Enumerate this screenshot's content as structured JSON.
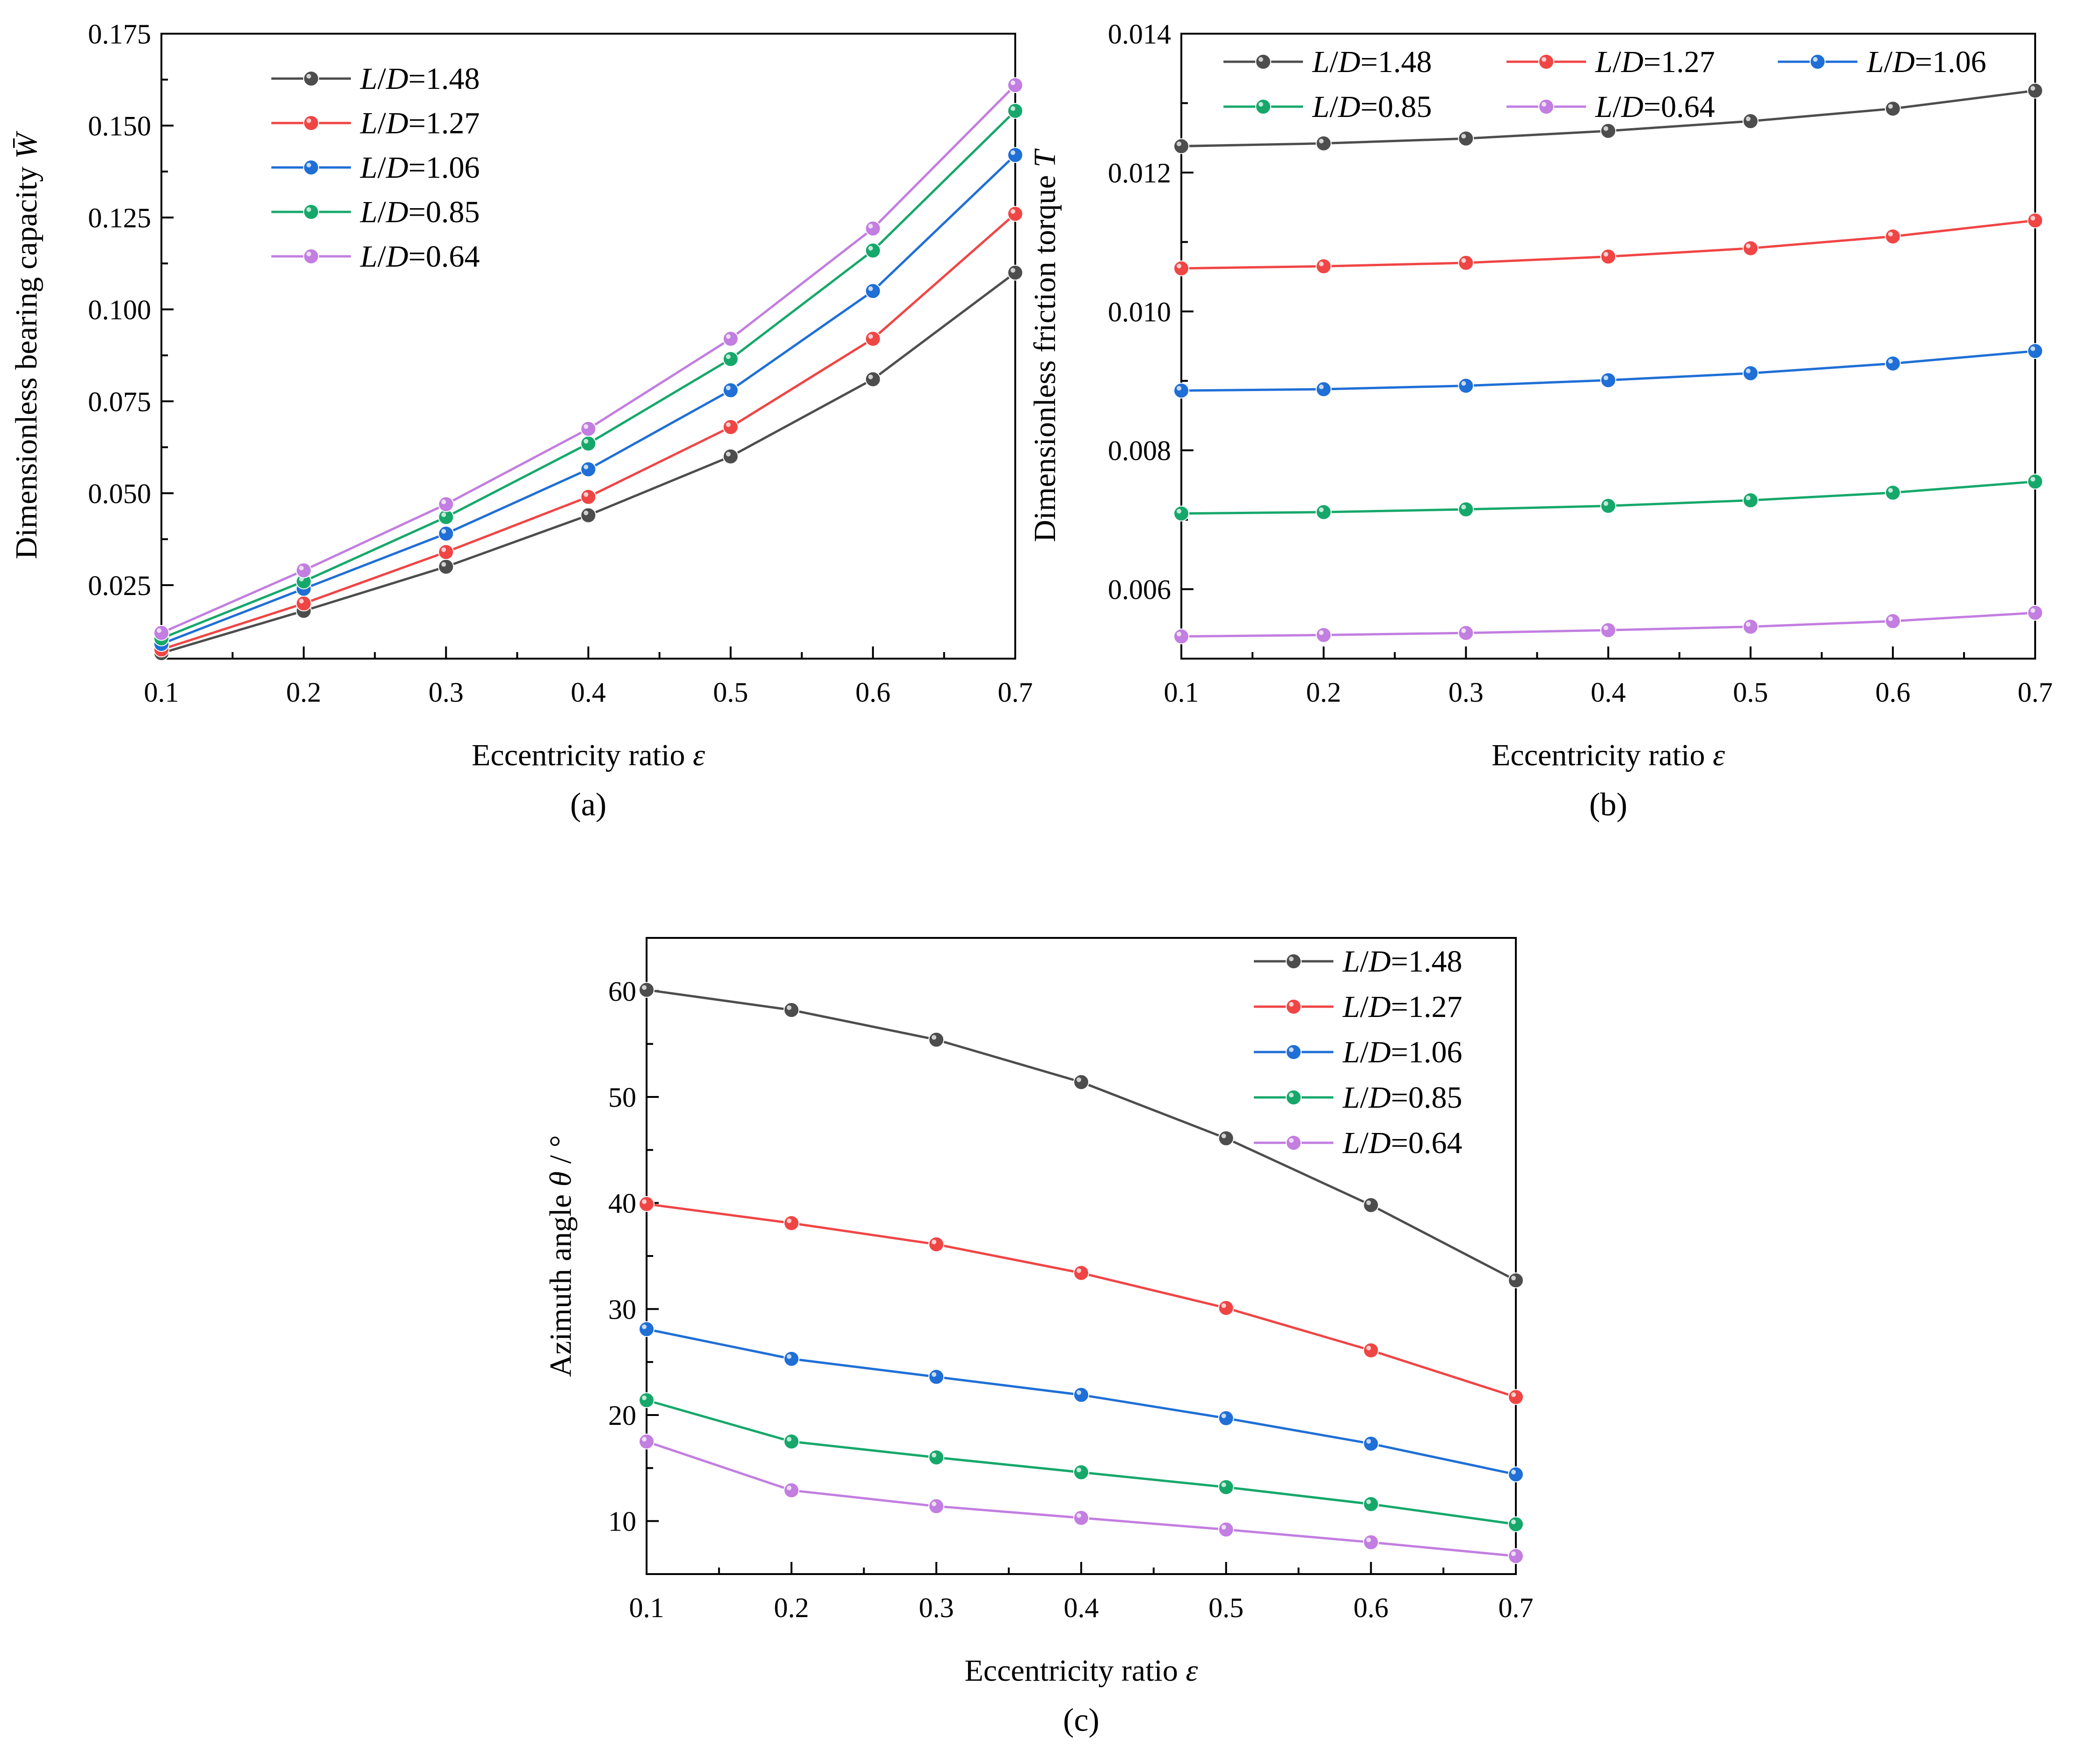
{
  "chart_data": [
    {
      "type": "line",
      "title": "",
      "caption": "(a)",
      "xlabel": "Eccentricity ratio ε",
      "ylabel": "Dimensionless bearing capacity W̄",
      "x": [
        0.1,
        0.2,
        0.3,
        0.4,
        0.5,
        0.6,
        0.7
      ],
      "xlim": [
        0.1,
        0.7
      ],
      "ylim": [
        0.005,
        0.175
      ],
      "xticks": [
        0.1,
        0.2,
        0.3,
        0.4,
        0.5,
        0.6,
        0.7
      ],
      "yticks": [
        0.025,
        0.05,
        0.075,
        0.1,
        0.125,
        0.15,
        0.175
      ],
      "xtick_labels": [
        "0.1",
        "0.2",
        "0.3",
        "0.4",
        "0.5",
        "0.6",
        "0.7"
      ],
      "ytick_labels": [
        "0.025",
        "0.050",
        "0.075",
        "0.100",
        "0.125",
        "0.150",
        "0.175"
      ],
      "legend": "top-left",
      "series": [
        {
          "name": "L/D=1.48",
          "color": "#4d4d4d",
          "values": [
            0.0065,
            0.018,
            0.03,
            0.044,
            0.06,
            0.081,
            0.11
          ]
        },
        {
          "name": "L/D=1.27",
          "color": "#f04545",
          "values": [
            0.0075,
            0.02,
            0.034,
            0.049,
            0.068,
            0.092,
            0.126
          ]
        },
        {
          "name": "L/D=1.06",
          "color": "#1f6fd6",
          "values": [
            0.009,
            0.024,
            0.039,
            0.0565,
            0.078,
            0.105,
            0.142
          ]
        },
        {
          "name": "L/D=0.85",
          "color": "#16a86b",
          "values": [
            0.0105,
            0.026,
            0.0435,
            0.0635,
            0.0865,
            0.116,
            0.154
          ]
        },
        {
          "name": "L/D=0.64",
          "color": "#c27ee0",
          "values": [
            0.012,
            0.029,
            0.047,
            0.0675,
            0.092,
            0.122,
            0.161
          ]
        }
      ]
    },
    {
      "type": "line",
      "title": "",
      "caption": "(b)",
      "xlabel": "Eccentricity ratio ε",
      "ylabel": "Dimensionless friction torque T",
      "x": [
        0.1,
        0.2,
        0.3,
        0.4,
        0.5,
        0.6,
        0.7
      ],
      "xlim": [
        0.1,
        0.7
      ],
      "ylim": [
        0.005,
        0.014
      ],
      "xticks": [
        0.1,
        0.2,
        0.3,
        0.4,
        0.5,
        0.6,
        0.7
      ],
      "yticks": [
        0.006,
        0.008,
        0.01,
        0.012,
        0.014
      ],
      "xtick_labels": [
        "0.1",
        "0.2",
        "0.3",
        "0.4",
        "0.5",
        "0.6",
        "0.7"
      ],
      "ytick_labels": [
        "0.006",
        "0.008",
        "0.010",
        "0.012",
        "0.014"
      ],
      "legend": "top",
      "series": [
        {
          "name": "L/D=1.48",
          "color": "#4d4d4d",
          "values": [
            0.01238,
            0.01242,
            0.01249,
            0.0126,
            0.01274,
            0.01292,
            0.01318
          ]
        },
        {
          "name": "L/D=1.27",
          "color": "#f04545",
          "values": [
            0.01062,
            0.01065,
            0.0107,
            0.01079,
            0.01091,
            0.01108,
            0.01131
          ]
        },
        {
          "name": "L/D=1.06",
          "color": "#1f6fd6",
          "values": [
            0.00886,
            0.00888,
            0.00893,
            0.00901,
            0.00911,
            0.00925,
            0.00943
          ]
        },
        {
          "name": "L/D=0.85",
          "color": "#16a86b",
          "values": [
            0.00709,
            0.00711,
            0.00715,
            0.0072,
            0.00728,
            0.00739,
            0.00755
          ]
        },
        {
          "name": "L/D=0.64",
          "color": "#c27ee0",
          "values": [
            0.00532,
            0.00534,
            0.00537,
            0.00541,
            0.00546,
            0.00554,
            0.00566
          ]
        }
      ]
    },
    {
      "type": "line",
      "title": "",
      "caption": "(c)",
      "xlabel": "Eccentricity ratio ε",
      "ylabel": "Azimuth angle θ / °",
      "x": [
        0.1,
        0.2,
        0.3,
        0.4,
        0.5,
        0.6,
        0.7
      ],
      "xlim": [
        0.1,
        0.7
      ],
      "ylim": [
        5,
        65
      ],
      "xticks": [
        0.1,
        0.2,
        0.3,
        0.4,
        0.5,
        0.6,
        0.7
      ],
      "yticks": [
        10,
        20,
        30,
        40,
        50,
        60
      ],
      "xtick_labels": [
        "0.1",
        "0.2",
        "0.3",
        "0.4",
        "0.5",
        "0.6",
        "0.7"
      ],
      "ytick_labels": [
        "10",
        "20",
        "30",
        "40",
        "50",
        "60"
      ],
      "legend": "top-right",
      "series": [
        {
          "name": "L/D=1.48",
          "color": "#4d4d4d",
          "values": [
            60.1,
            58.2,
            55.4,
            51.4,
            46.1,
            39.8,
            32.7
          ]
        },
        {
          "name": "L/D=1.27",
          "color": "#f04545",
          "values": [
            39.9,
            38.1,
            36.1,
            33.4,
            30.1,
            26.1,
            21.7
          ]
        },
        {
          "name": "L/D=1.06",
          "color": "#1f6fd6",
          "values": [
            28.1,
            25.3,
            23.6,
            21.9,
            19.7,
            17.3,
            14.4
          ]
        },
        {
          "name": "L/D=0.85",
          "color": "#16a86b",
          "values": [
            21.4,
            17.5,
            16.0,
            14.6,
            13.2,
            11.6,
            9.7
          ]
        },
        {
          "name": "L/D=0.64",
          "color": "#c27ee0",
          "values": [
            17.5,
            12.9,
            11.4,
            10.3,
            9.2,
            8.0,
            6.7
          ]
        }
      ]
    }
  ]
}
